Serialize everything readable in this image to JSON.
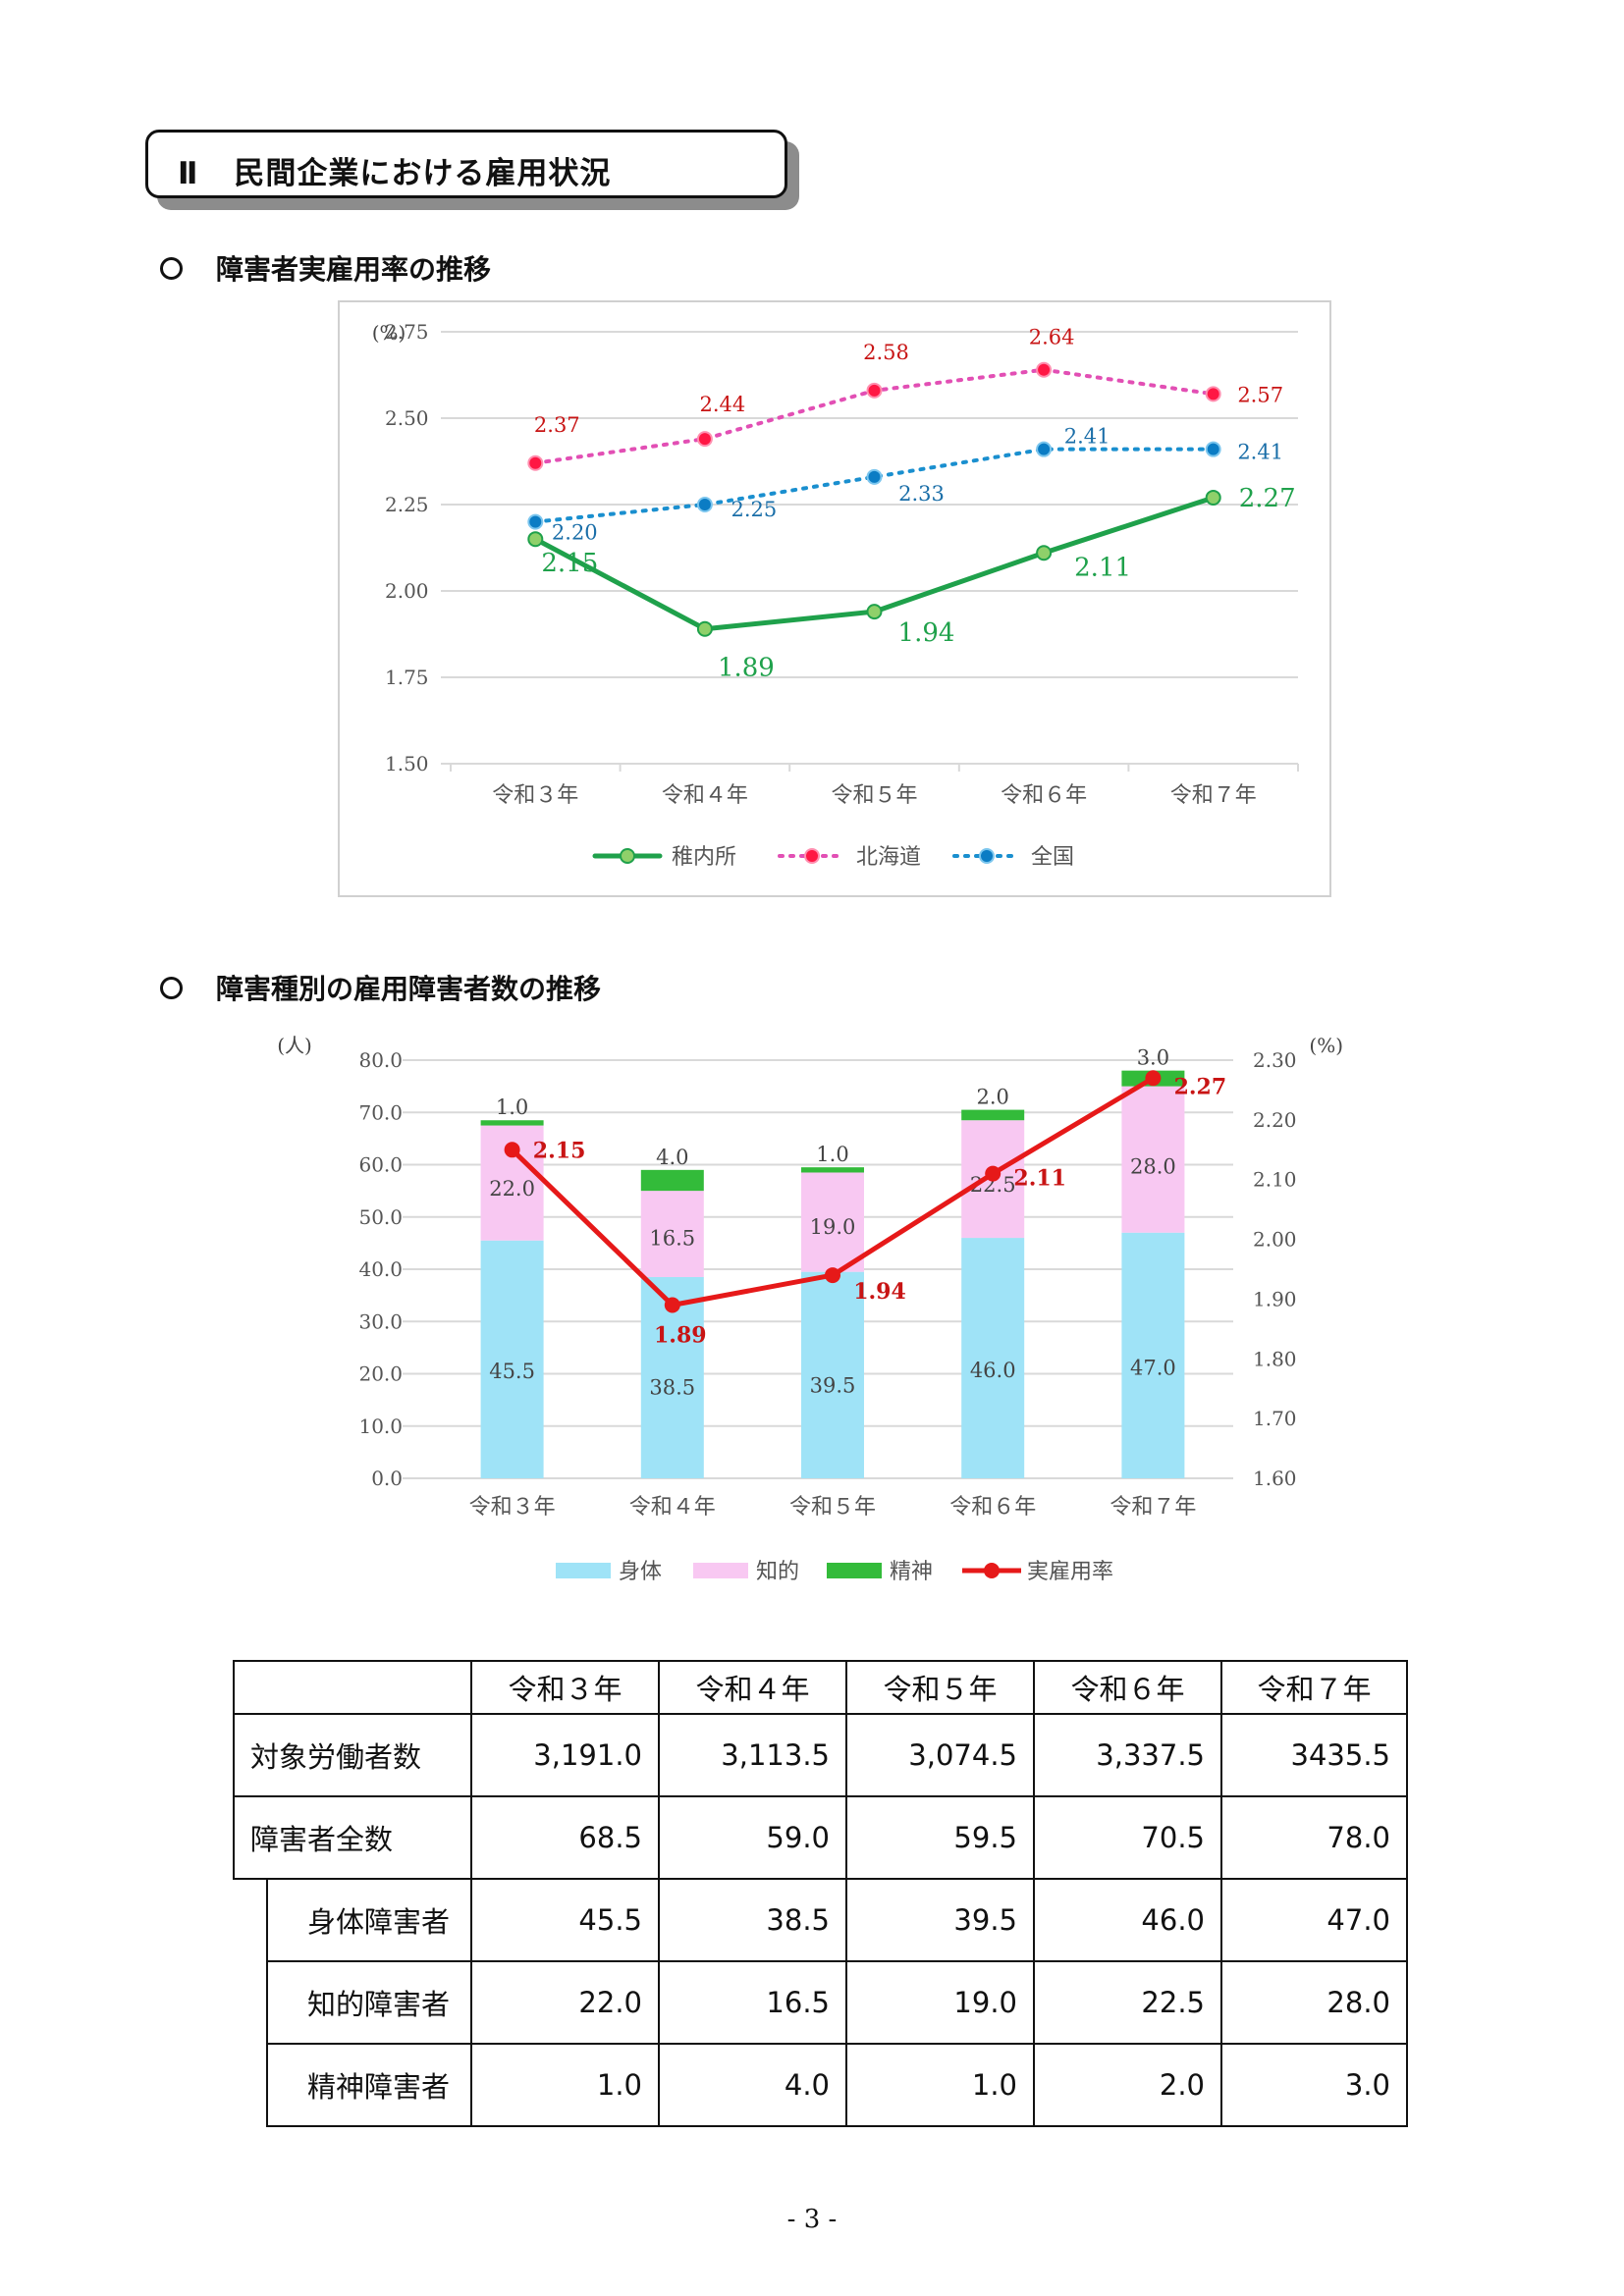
{
  "heading": {
    "number": "Ⅱ",
    "title": "民間企業における雇用状況"
  },
  "section1": {
    "title": "障害者実雇用率の推移"
  },
  "section2": {
    "title": "障害種別の雇用障害者数の推移"
  },
  "colors": {
    "wakkanai": "#1fa14b",
    "hokkaido": "#e24fb4",
    "zenkoku": "#1a8fcf",
    "red_label": "#c81414",
    "blue_label": "#1a6ea8",
    "physical": "#9fe3f7",
    "intellectual": "#f8c8f2",
    "mental": "#33bb3a",
    "rate_line": "#e61919"
  },
  "chart_data": [
    {
      "type": "line",
      "unit": "(%)",
      "categories": [
        "令和３年",
        "令和４年",
        "令和５年",
        "令和６年",
        "令和７年"
      ],
      "ylim": [
        1.5,
        2.75
      ],
      "yticks": [
        "2.75",
        "2.50",
        "2.25",
        "2.00",
        "1.75",
        "1.50"
      ],
      "grid": true,
      "legend_position": "bottom",
      "series": [
        {
          "name": "稚内所",
          "values": [
            2.15,
            1.89,
            1.94,
            2.11,
            2.27
          ],
          "labels": [
            "2.15",
            "1.89",
            "1.94",
            "2.11",
            "2.27"
          ]
        },
        {
          "name": "北海道",
          "values": [
            2.37,
            2.44,
            2.58,
            2.64,
            2.57
          ],
          "labels": [
            "2.37",
            "2.44",
            "2.58",
            "2.64",
            "2.57"
          ]
        },
        {
          "name": "全国",
          "values": [
            2.2,
            2.25,
            2.33,
            2.41,
            2.41
          ],
          "labels": [
            "2.20",
            "2.25",
            "2.33",
            "2.41",
            "2.41"
          ]
        }
      ]
    },
    {
      "type": "bar",
      "stacked": true,
      "unit_left": "(人)",
      "unit_right": "(%)",
      "categories": [
        "令和３年",
        "令和４年",
        "令和５年",
        "令和６年",
        "令和７年"
      ],
      "ylim": [
        0,
        80
      ],
      "yticks": [
        "80.0",
        "70.0",
        "60.0",
        "50.0",
        "40.0",
        "30.0",
        "20.0",
        "10.0",
        "0.0"
      ],
      "y2lim": [
        1.6,
        2.3
      ],
      "y2ticks": [
        "2.30",
        "2.20",
        "2.10",
        "2.00",
        "1.90",
        "1.80",
        "1.70",
        "1.60"
      ],
      "legend_position": "bottom",
      "series": [
        {
          "name": "身体",
          "values": [
            45.5,
            38.5,
            39.5,
            46.0,
            47.0
          ],
          "labels": [
            "45.5",
            "38.5",
            "39.5",
            "46.0",
            "47.0"
          ]
        },
        {
          "name": "知的",
          "values": [
            22.0,
            16.5,
            19.0,
            22.5,
            28.0
          ],
          "labels": [
            "22.0",
            "16.5",
            "19.0",
            "22.5",
            "28.0"
          ]
        },
        {
          "name": "精神",
          "values": [
            1.0,
            4.0,
            1.0,
            2.0,
            3.0
          ],
          "labels": [
            "1.0",
            "4.0",
            "1.0",
            "2.0",
            "3.0"
          ]
        }
      ],
      "line": {
        "name": "実雇用率",
        "values": [
          2.15,
          1.89,
          1.94,
          2.11,
          2.27
        ],
        "labels": [
          "2.15",
          "1.89",
          "1.94",
          "2.11",
          "2.27"
        ]
      }
    }
  ],
  "table": {
    "headers": [
      "令和３年",
      "令和４年",
      "令和５年",
      "令和６年",
      "令和７年"
    ],
    "rows": [
      {
        "label": "対象労働者数",
        "values": [
          "3,191.0",
          "3,113.5",
          "3,074.5",
          "3,337.5",
          "3435.5"
        ]
      },
      {
        "label": "障害者全数",
        "values": [
          "68.5",
          "59.0",
          "59.5",
          "70.5",
          "78.0"
        ]
      },
      {
        "label": "身体障害者",
        "values": [
          "45.5",
          "38.5",
          "39.5",
          "46.0",
          "47.0"
        ]
      },
      {
        "label": "知的障害者",
        "values": [
          "22.0",
          "16.5",
          "19.0",
          "22.5",
          "28.0"
        ]
      },
      {
        "label": "精神障害者",
        "values": [
          "1.0",
          "4.0",
          "1.0",
          "2.0",
          "3.0"
        ]
      }
    ]
  },
  "page_number": "- 3 -"
}
